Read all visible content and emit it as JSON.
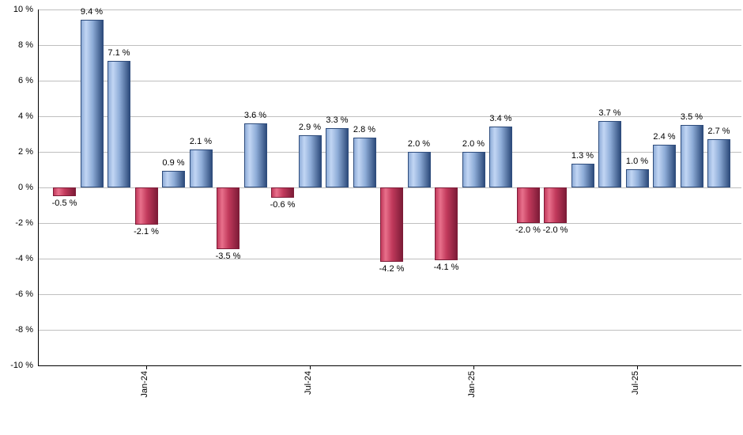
{
  "chart_data": {
    "type": "bar",
    "unit": "%",
    "values": [
      -0.5,
      9.4,
      7.1,
      -2.1,
      0.9,
      2.1,
      -3.5,
      3.6,
      -0.6,
      2.9,
      3.3,
      2.8,
      -4.2,
      2.0,
      -4.1,
      2.0,
      3.4,
      -2.0,
      -2.0,
      1.3,
      3.7,
      1.0,
      2.4,
      3.5,
      2.7
    ],
    "bar_labels": [
      "-0.5 %",
      "9.4 %",
      "7.1 %",
      "-2.1 %",
      "0.9 %",
      "2.1 %",
      "-3.5 %",
      "3.6 %",
      "-0.6 %",
      "2.9 %",
      "3.3 %",
      "2.8 %",
      "-4.2 %",
      "2.0 %",
      "-4.1 %",
      "2.0 %",
      "3.4 %",
      "-2.0 %",
      "-2.0 %",
      "1.3 %",
      "3.7 %",
      "1.0 %",
      "2.4 %",
      "3.5 %",
      "2.7 %"
    ],
    "x_ticks": [
      {
        "bar_index": 3,
        "label": "Jan-24"
      },
      {
        "bar_index": 9,
        "label": "Jul-24"
      },
      {
        "bar_index": 15,
        "label": "Jan-25"
      },
      {
        "bar_index": 21,
        "label": "Jul-25"
      }
    ],
    "y_ticks": [
      "10 %",
      "8 %",
      "6 %",
      "4 %",
      "2 %",
      "0 %",
      "-2 %",
      "-4 %",
      "-6 %",
      "-8 %",
      "-10 %"
    ],
    "ylim": [
      -10,
      10
    ],
    "grid": true,
    "colors": {
      "positive_bar": "#8fadd8",
      "positive_bar_light": "#c2d6f4",
      "positive_bar_dark": "#2e4c7c",
      "negative_bar": "#c23a5c",
      "negative_bar_light": "#e8708b",
      "negative_bar_dark": "#7e1c38",
      "gridline": "#bfbfbf",
      "axis": "#000000",
      "background": "#ffffff",
      "label_text": "#000000"
    }
  }
}
